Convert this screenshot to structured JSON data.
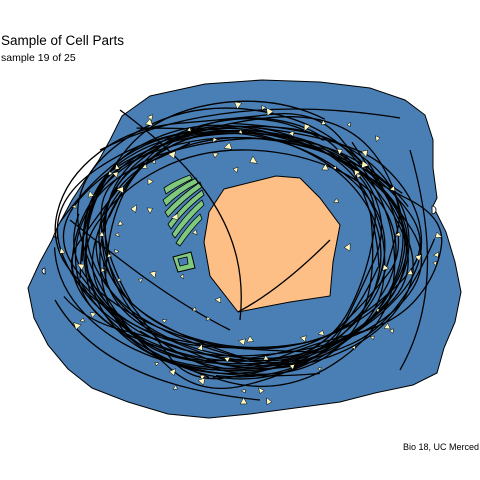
{
  "title": "Sample of Cell Parts",
  "subtitle": "sample 19 of 25",
  "credit": "Bio 18, UC Merced",
  "colors": {
    "cytoplasm": "#4a7fb5",
    "nucleus": "#fdbf86",
    "golgi": "#7fc97f",
    "outline": "#000000",
    "vesicle": "#fff9c0"
  }
}
